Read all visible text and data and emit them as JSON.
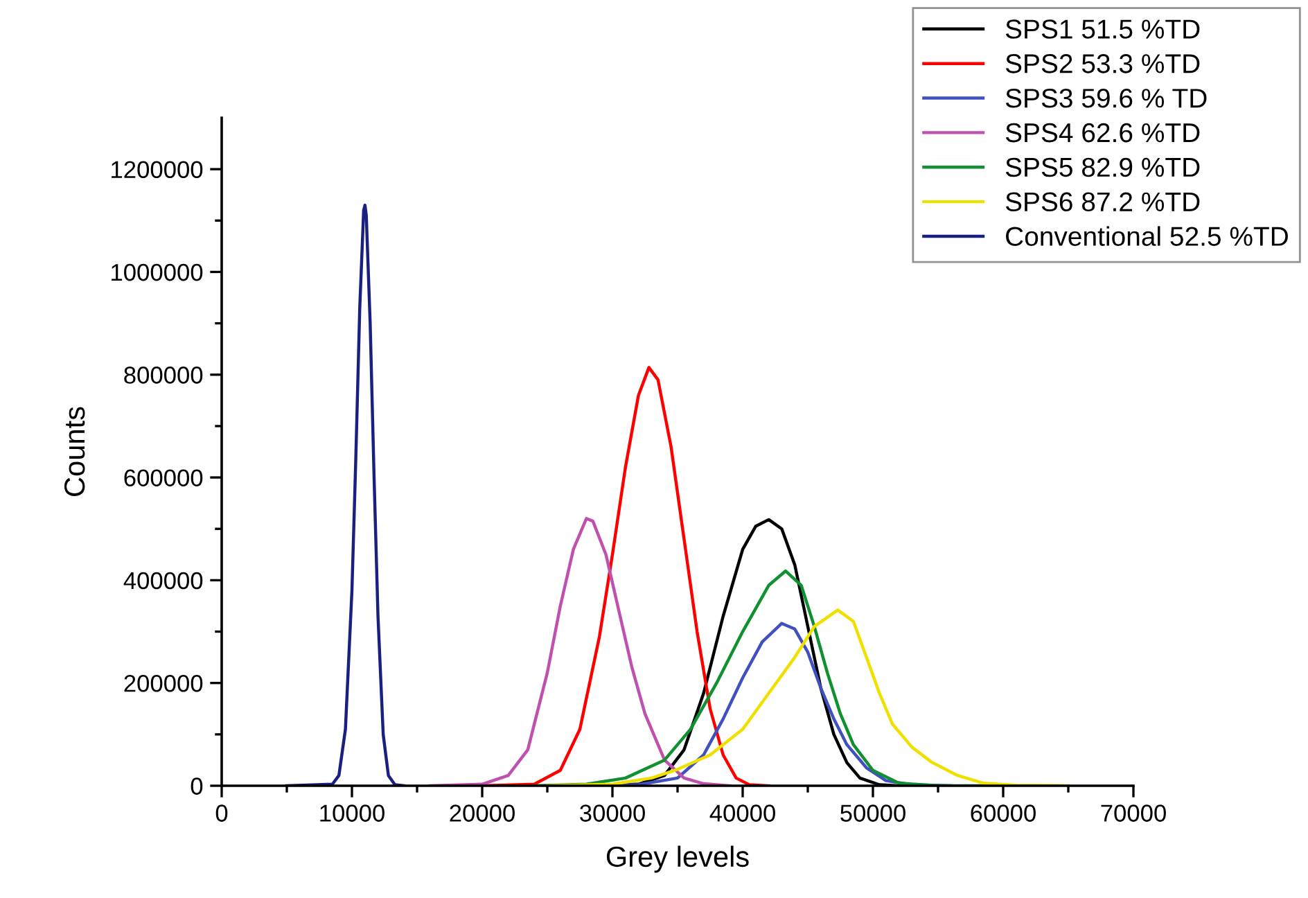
{
  "chart_data": {
    "type": "line",
    "xlabel": "Grey levels",
    "ylabel": "Counts",
    "xlim": [
      0,
      70000
    ],
    "ylim": [
      0,
      1300000
    ],
    "xticks": [
      0,
      {
        "value": 5000,
        "label": null
      },
      10000,
      {
        "value": 15000,
        "label": null
      },
      20000,
      {
        "value": 25000,
        "label": null
      },
      30000,
      {
        "value": 35000,
        "label": null
      },
      40000,
      {
        "value": 45000,
        "label": null
      },
      50000,
      {
        "value": 55000,
        "label": null
      },
      60000,
      {
        "value": 65000,
        "label": null
      },
      70000
    ],
    "yticks": [
      0,
      {
        "value": 100000,
        "label": null
      },
      200000,
      {
        "value": 300000,
        "label": null
      },
      400000,
      {
        "value": 500000,
        "label": null
      },
      600000,
      {
        "value": 700000,
        "label": null
      },
      800000,
      {
        "value": 900000,
        "label": null
      },
      1000000,
      {
        "value": 1100000,
        "label": null
      },
      1200000
    ],
    "grid": false,
    "legend": "top right",
    "marker": "none",
    "line_style": "solid",
    "series": [
      {
        "name": "SPS1 51.5 %TD",
        "color": "#000000",
        "x": [
          28000,
          32000,
          34000,
          35500,
          37000,
          38500,
          40000,
          41000,
          42000,
          43000,
          44000,
          45000,
          46000,
          47000,
          48000,
          49000,
          50500,
          52000
        ],
        "values": [
          0,
          3000,
          20000,
          70000,
          180000,
          330000,
          460000,
          505000,
          518000,
          500000,
          430000,
          310000,
          190000,
          100000,
          45000,
          15000,
          2000,
          0
        ]
      },
      {
        "name": "SPS2 53.3 %TD",
        "color": "#ff0000",
        "x": [
          20000,
          24000,
          26000,
          27500,
          29000,
          30000,
          31000,
          32000,
          32800,
          33500,
          34500,
          35500,
          36500,
          37500,
          38500,
          39500,
          40500,
          42000
        ],
        "values": [
          0,
          3000,
          30000,
          110000,
          290000,
          450000,
          620000,
          760000,
          814000,
          790000,
          660000,
          480000,
          300000,
          150000,
          60000,
          15000,
          2000,
          0
        ]
      },
      {
        "name": "SPS3 59.6 % TD",
        "color": "#4050c0",
        "x": [
          28000,
          32000,
          35000,
          37000,
          38500,
          40000,
          41500,
          43000,
          44000,
          45000,
          46000,
          47000,
          48000,
          49500,
          51000,
          53000,
          56000
        ],
        "values": [
          0,
          2000,
          15000,
          60000,
          130000,
          210000,
          280000,
          316000,
          305000,
          260000,
          190000,
          130000,
          80000,
          35000,
          10000,
          2000,
          0
        ]
      },
      {
        "name": "SPS4 62.6 %TD",
        "color": "#c050b0",
        "x": [
          16000,
          20000,
          22000,
          23500,
          25000,
          26000,
          27000,
          28000,
          28500,
          29500,
          30500,
          31500,
          32500,
          34000,
          35500,
          37000,
          39000
        ],
        "values": [
          0,
          3000,
          20000,
          70000,
          220000,
          350000,
          460000,
          520000,
          515000,
          450000,
          340000,
          230000,
          140000,
          50000,
          15000,
          4000,
          0
        ]
      },
      {
        "name": "SPS5 82.9 %TD",
        "color": "#109030",
        "x": [
          24000,
          28000,
          31000,
          34000,
          36000,
          38000,
          40000,
          42000,
          43300,
          44500,
          45500,
          46500,
          47500,
          48500,
          50000,
          52000,
          55000,
          60000
        ],
        "values": [
          0,
          3000,
          15000,
          50000,
          110000,
          200000,
          300000,
          390000,
          418000,
          390000,
          310000,
          220000,
          140000,
          80000,
          30000,
          5000,
          0,
          0
        ]
      },
      {
        "name": "SPS6 87.2 %TD",
        "color": "#f0e000",
        "x": [
          25000,
          30000,
          33000,
          35000,
          37500,
          40000,
          42000,
          44000,
          45500,
          47300,
          48500,
          49500,
          50500,
          51500,
          53000,
          54500,
          56500,
          58500,
          61000,
          65000
        ],
        "values": [
          0,
          3000,
          15000,
          32000,
          60000,
          110000,
          180000,
          250000,
          310000,
          342000,
          320000,
          250000,
          180000,
          120000,
          75000,
          46000,
          20000,
          5000,
          1000,
          0
        ]
      },
      {
        "name": "Conventional 52.5 %TD",
        "color": "#1a2080",
        "x": [
          5000,
          8500,
          9000,
          9500,
          10000,
          10300,
          10600,
          10900,
          11000,
          11100,
          11400,
          11700,
          12000,
          12400,
          12800,
          13300,
          14000
        ],
        "values": [
          0,
          3000,
          20000,
          110000,
          380000,
          640000,
          930000,
          1120000,
          1130000,
          1110000,
          900000,
          600000,
          330000,
          100000,
          20000,
          2000,
          0
        ]
      }
    ]
  }
}
